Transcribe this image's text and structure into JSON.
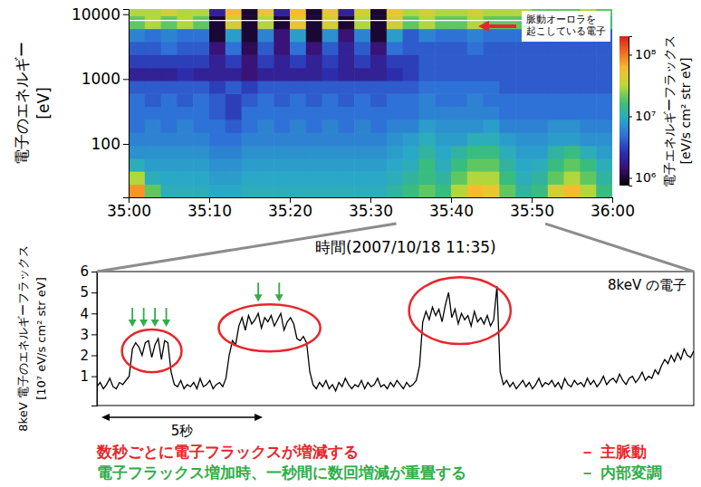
{
  "chart_data": [
    {
      "type": "heatmap",
      "xlabel": "時間(2007/10/18 11:35)",
      "ylabel": [
        "電子のエネルギー",
        "[eV]"
      ],
      "log": "y",
      "xlim": [
        0,
        60
      ],
      "xticks": [
        {
          "value": 0,
          "label": "35:00"
        },
        {
          "value": 10,
          "label": "35:10"
        },
        {
          "value": 20,
          "label": "35:20"
        },
        {
          "value": 30,
          "label": "35:30"
        },
        {
          "value": 40,
          "label": "35:40"
        },
        {
          "value": 50,
          "label": "35:50"
        },
        {
          "value": 60,
          "label": "36:00"
        }
      ],
      "ylim": [
        15,
        12000
      ],
      "yticks": [
        100,
        1000,
        10000
      ],
      "x_edges": [
        0,
        2,
        4,
        6,
        8,
        10,
        12,
        14,
        16,
        18,
        20,
        22,
        24,
        26,
        28,
        30,
        32,
        34,
        36,
        38,
        40,
        42,
        44,
        46,
        48,
        50,
        52,
        54,
        56,
        58,
        60
      ],
      "y_edges": [
        15,
        24,
        38,
        60,
        95,
        150,
        240,
        380,
        600,
        950,
        1500,
        2400,
        3800,
        6000,
        9500,
        12000
      ],
      "cells": [
        [
          80000000.0,
          20000000.0,
          10000000.0,
          10000000.0,
          10000000.0,
          9000000.0,
          9000000.0,
          10000000.0,
          10000000.0,
          10000000.0,
          10000000.0,
          10000000.0,
          10000000.0,
          10000000.0,
          10000000.0,
          10000000.0,
          12000000.0,
          15000000.0,
          20000000.0,
          15000000.0,
          30000000.0,
          60000000.0,
          50000000.0,
          20000000.0,
          12000000.0,
          15000000.0,
          40000000.0,
          60000000.0,
          30000000.0,
          15000000.0
        ],
        [
          30000000.0,
          10000000.0,
          9000000.0,
          9000000.0,
          9000000.0,
          8000000.0,
          8000000.0,
          9000000.0,
          9000000.0,
          9000000.0,
          9000000.0,
          9000000.0,
          9000000.0,
          9000000.0,
          9000000.0,
          9000000.0,
          10000000.0,
          12000000.0,
          15000000.0,
          12000000.0,
          20000000.0,
          30000000.0,
          30000000.0,
          15000000.0,
          10000000.0,
          12000000.0,
          20000000.0,
          30000000.0,
          20000000.0,
          12000000.0
        ],
        [
          10000000.0,
          8000000.0,
          8000000.0,
          8000000.0,
          8000000.0,
          7000000.0,
          7000000.0,
          8000000.0,
          8000000.0,
          8000000.0,
          8000000.0,
          8000000.0,
          8000000.0,
          8000000.0,
          8000000.0,
          8000000.0,
          9000000.0,
          10000000.0,
          15000000.0,
          10000000.0,
          15000000.0,
          20000000.0,
          20000000.0,
          12000000.0,
          9000000.0,
          10000000.0,
          15000000.0,
          20000000.0,
          15000000.0,
          10000000.0
        ],
        [
          7000000.0,
          7000000.0,
          7000000.0,
          7000000.0,
          7000000.0,
          6000000.0,
          6000000.0,
          7000000.0,
          7000000.0,
          7000000.0,
          7000000.0,
          7000000.0,
          7000000.0,
          7000000.0,
          7000000.0,
          7000000.0,
          8000000.0,
          9000000.0,
          12000000.0,
          9000000.0,
          12000000.0,
          15000000.0,
          15000000.0,
          10000000.0,
          8000000.0,
          8000000.0,
          12000000.0,
          15000000.0,
          10000000.0,
          8000000.0
        ],
        [
          6000000.0,
          6000000.0,
          6000000.0,
          6000000.0,
          6000000.0,
          5000000.0,
          5000000.0,
          6000000.0,
          6000000.0,
          6000000.0,
          6000000.0,
          6000000.0,
          6000000.0,
          6000000.0,
          6000000.0,
          6000000.0,
          7000000.0,
          8000000.0,
          10000000.0,
          8000000.0,
          8000000.0,
          10000000.0,
          10000000.0,
          8000000.0,
          7000000.0,
          7000000.0,
          8000000.0,
          8000000.0,
          7000000.0,
          7000000.0
        ],
        [
          5000000.0,
          6000000.0,
          5000000.0,
          6000000.0,
          5000000.0,
          5000000.0,
          4000000.0,
          5000000.0,
          6000000.0,
          5000000.0,
          6000000.0,
          5000000.0,
          6000000.0,
          5000000.0,
          6000000.0,
          5000000.0,
          6000000.0,
          6000000.0,
          8000000.0,
          7000000.0,
          7000000.0,
          7000000.0,
          8000000.0,
          6000000.0,
          6000000.0,
          6000000.0,
          7000000.0,
          7000000.0,
          6000000.0,
          6000000.0
        ],
        [
          5000000.0,
          5000000.0,
          5000000.0,
          5000000.0,
          5000000.0,
          4000000.0,
          3000000.0,
          5000000.0,
          5000000.0,
          5000000.0,
          5000000.0,
          5000000.0,
          5000000.0,
          5000000.0,
          5000000.0,
          5000000.0,
          5000000.0,
          5000000.0,
          6000000.0,
          6000000.0,
          6000000.0,
          6000000.0,
          6000000.0,
          5000000.0,
          5000000.0,
          5000000.0,
          5000000.0,
          5000000.0,
          5000000.0,
          5000000.0
        ],
        [
          5000000.0,
          4000000.0,
          5000000.0,
          4000000.0,
          5000000.0,
          4000000.0,
          3000000.0,
          4000000.0,
          5000000.0,
          4000000.0,
          5000000.0,
          4000000.0,
          5000000.0,
          4000000.0,
          5000000.0,
          4000000.0,
          5000000.0,
          5000000.0,
          6000000.0,
          5000000.0,
          5000000.0,
          6000000.0,
          5000000.0,
          5000000.0,
          5000000.0,
          5000000.0,
          5000000.0,
          5000000.0,
          5000000.0,
          5000000.0
        ],
        [
          4000000.0,
          4000000.0,
          4000000.0,
          4000000.0,
          4000000.0,
          3000000.0,
          4000000.0,
          3000000.0,
          4000000.0,
          4000000.0,
          4000000.0,
          4000000.0,
          4000000.0,
          4000000.0,
          4000000.0,
          4000000.0,
          4000000.0,
          4000000.0,
          5000000.0,
          5000000.0,
          5000000.0,
          5000000.0,
          5000000.0,
          4000000.0,
          4000000.0,
          4000000.0,
          4000000.0,
          4000000.0,
          4000000.0,
          4000000.0
        ],
        [
          2000000.0,
          2000000.0,
          2000000.0,
          2500000.0,
          2000000.0,
          2000000.0,
          2000000.0,
          1500000.0,
          2000000.0,
          2000000.0,
          2000000.0,
          2000000.0,
          2500000.0,
          2000000.0,
          2000000.0,
          2000000.0,
          2500000.0,
          3000000.0,
          4000000.0,
          4000000.0,
          4000000.0,
          4000000.0,
          4000000.0,
          4000000.0,
          4000000.0,
          4000000.0,
          4000000.0,
          4000000.0,
          4000000.0,
          4000000.0
        ],
        [
          3000000.0,
          3000000.0,
          3000000.0,
          3000000.0,
          3000000.0,
          2000000.0,
          3000000.0,
          1500000.0,
          3000000.0,
          2000000.0,
          3000000.0,
          2000000.0,
          3000000.0,
          2000000.0,
          3000000.0,
          2000000.0,
          3000000.0,
          3000000.0,
          4000000.0,
          4000000.0,
          4000000.0,
          4000000.0,
          4000000.0,
          4000000.0,
          4000000.0,
          4000000.0,
          4000000.0,
          4000000.0,
          4000000.0,
          4000000.0
        ],
        [
          4000000.0,
          4000000.0,
          5000000.0,
          4000000.0,
          4000000.0,
          1500000.0,
          5000000.0,
          1200000.0,
          4000000.0,
          1500000.0,
          5000000.0,
          1500000.0,
          4000000.0,
          2000000.0,
          4000000.0,
          1500000.0,
          5000000.0,
          4000000.0,
          4000000.0,
          4000000.0,
          4000000.0,
          5000000.0,
          4000000.0,
          4000000.0,
          4000000.0,
          4000000.0,
          4000000.0,
          4000000.0,
          4000000.0,
          4000000.0
        ],
        [
          6000000.0,
          5000000.0,
          6000000.0,
          5000000.0,
          5000000.0,
          1000000.0,
          8000000.0,
          1000000.0,
          6000000.0,
          1500000.0,
          8000000.0,
          1000000.0,
          7000000.0,
          1500000.0,
          6000000.0,
          1000000.0,
          8000000.0,
          4000000.0,
          6000000.0,
          5000000.0,
          5000000.0,
          6000000.0,
          5000000.0,
          5000000.0,
          5000000.0,
          5000000.0,
          4000000.0,
          5000000.0,
          5000000.0,
          4000000.0
        ],
        [
          20000000.0,
          30000000.0,
          20000000.0,
          30000000.0,
          20000000.0,
          1000000.0,
          40000000.0,
          1000000.0,
          30000000.0,
          1000000.0,
          50000000.0,
          1000000.0,
          40000000.0,
          1000000.0,
          30000000.0,
          1000000.0,
          40000000.0,
          20000000.0,
          30000000.0,
          20000000.0,
          20000000.0,
          30000000.0,
          20000000.0,
          20000000.0,
          20000000.0,
          15000000.0,
          20000000.0,
          15000000.0,
          20000000.0,
          15000000.0
        ],
        [
          30000000.0,
          30000000.0,
          40000000.0,
          30000000.0,
          30000000.0,
          2000000.0,
          60000000.0,
          1000000.0,
          50000000.0,
          2000000.0,
          60000000.0,
          1000000.0,
          50000000.0,
          2000000.0,
          40000000.0,
          1000000.0,
          50000000.0,
          30000000.0,
          40000000.0,
          30000000.0,
          30000000.0,
          40000000.0,
          30000000.0,
          30000000.0,
          30000000.0,
          20000000.0,
          20000000.0,
          20000000.0,
          30000000.0,
          20000000.0
        ]
      ],
      "colorbar": {
        "label": [
          "電子エネルギーフラックス",
          "[eV/s cm² str eV]"
        ],
        "log": true,
        "range": [
          750000.0,
          200000000.0
        ],
        "ticks": [
          {
            "value": 1000000,
            "label": "10⁶"
          },
          {
            "value": 10000000,
            "label": "10⁷"
          },
          {
            "value": 100000000,
            "label": "10⁸"
          }
        ]
      },
      "highlight_energy": 8000,
      "annotation": [
        "脈動オーロラを",
        "起こしている電子"
      ],
      "zoom_range": [
        33.2,
        51.7
      ]
    },
    {
      "type": "line",
      "ylabel": [
        "8keV 電子のエネルギーフラックス",
        "[10⁷ eV/s cm² str eV]"
      ],
      "tick_labels": "y",
      "legend": "upper right",
      "xlim": [
        0,
        18.5
      ],
      "ylim": [
        -0.4,
        6
      ],
      "yticks": [
        1,
        2,
        3,
        4,
        5,
        6
      ],
      "x": [
        0,
        0.1,
        0.2,
        0.3,
        0.4,
        0.5,
        0.6,
        0.7,
        0.8,
        0.9,
        1,
        1.1,
        1.2,
        1.3,
        1.4,
        1.5,
        1.6,
        1.7,
        1.8,
        1.9,
        2,
        2.1,
        2.2,
        2.3,
        2.4,
        2.5,
        2.6,
        2.7,
        2.8,
        2.9,
        3,
        3.1,
        3.2,
        3.3,
        3.4,
        3.5,
        3.6,
        3.7,
        3.8,
        3.9,
        4,
        4.1,
        4.2,
        4.3,
        4.4,
        4.5,
        4.6,
        4.7,
        4.8,
        4.9,
        5,
        5.1,
        5.2,
        5.3,
        5.4,
        5.5,
        5.6,
        5.7,
        5.8,
        5.9,
        6,
        6.1,
        6.2,
        6.3,
        6.4,
        6.5,
        6.6,
        6.7,
        6.8,
        6.9,
        7,
        7.1,
        7.2,
        7.3,
        7.4,
        7.5,
        7.6,
        7.7,
        7.8,
        7.9,
        8,
        8.1,
        8.2,
        8.3,
        8.4,
        8.5,
        8.6,
        8.7,
        8.8,
        8.9,
        9,
        9.1,
        9.2,
        9.3,
        9.4,
        9.5,
        9.6,
        9.7,
        9.8,
        9.9,
        10,
        10.1,
        10.2,
        10.3,
        10.4,
        10.5,
        10.6,
        10.7,
        10.8,
        10.9,
        11,
        11.1,
        11.2,
        11.3,
        11.4,
        11.5,
        11.6,
        11.7,
        11.8,
        11.9,
        12,
        12.1,
        12.2,
        12.3,
        12.4,
        12.5,
        12.6,
        12.7,
        12.8,
        12.9,
        13,
        13.1,
        13.2,
        13.3,
        13.4,
        13.5,
        13.6,
        13.7,
        13.8,
        13.9,
        14,
        14.1,
        14.2,
        14.3,
        14.4,
        14.5,
        14.6,
        14.7,
        14.8,
        14.9,
        15,
        15.1,
        15.2,
        15.3,
        15.4,
        15.5,
        15.6,
        15.7,
        15.8,
        15.9,
        16,
        16.1,
        16.2,
        16.3,
        16.4,
        16.5,
        16.6,
        16.7,
        16.8,
        16.9,
        17,
        17.1,
        17.2,
        17.3,
        17.4,
        17.5,
        17.6,
        17.7,
        17.8,
        17.9,
        18,
        18.1,
        18.2,
        18.3,
        18.4,
        18.5
      ],
      "series": [
        {
          "name": "8keV の電子",
          "color": "#000000",
          "values": [
            0.5,
            0.7,
            0.4,
            0.6,
            0.9,
            0.5,
            0.4,
            0.7,
            0.6,
            0.8,
            1.0,
            2.3,
            2.6,
            2.4,
            2.0,
            2.6,
            2.7,
            1.9,
            2.5,
            2.8,
            1.8,
            2.7,
            2.6,
            1.2,
            0.6,
            0.5,
            0.8,
            0.4,
            0.6,
            0.5,
            0.7,
            0.4,
            0.9,
            0.5,
            0.6,
            0.8,
            0.4,
            0.6,
            0.7,
            0.5,
            0.9,
            2.0,
            2.7,
            2.5,
            3.4,
            3.8,
            3.2,
            3.9,
            3.5,
            3.7,
            4.0,
            3.3,
            3.8,
            3.6,
            3.9,
            3.4,
            3.7,
            4.0,
            3.2,
            3.6,
            3.8,
            3.5,
            2.8,
            2.7,
            2.9,
            2.6,
            1.2,
            0.6,
            0.4,
            0.7,
            0.5,
            0.8,
            0.4,
            0.6,
            0.3,
            0.7,
            0.5,
            0.9,
            0.6,
            0.4,
            0.6,
            0.5,
            0.8,
            0.4,
            0.7,
            0.5,
            0.6,
            0.9,
            0.5,
            0.6,
            0.4,
            0.7,
            0.5,
            0.8,
            0.6,
            0.4,
            0.7,
            0.5,
            0.6,
            0.8,
            1.5,
            3.6,
            4.1,
            3.7,
            4.3,
            3.9,
            4.2,
            3.6,
            4.4,
            5.0,
            3.8,
            4.2,
            3.5,
            4.0,
            3.7,
            3.9,
            3.4,
            4.1,
            3.6,
            3.8,
            3.5,
            3.9,
            3.4,
            3.7,
            5.3,
            1.2,
            0.6,
            0.8,
            0.5,
            0.7,
            0.4,
            0.6,
            0.8,
            0.5,
            0.7,
            0.4,
            0.6,
            0.9,
            0.5,
            0.7,
            0.6,
            0.8,
            0.5,
            0.7,
            0.4,
            0.9,
            0.6,
            0.5,
            0.8,
            0.6,
            0.7,
            0.5,
            0.9,
            0.6,
            0.8,
            0.5,
            0.7,
            1.0,
            0.6,
            0.8,
            0.9,
            0.7,
            1.1,
            0.8,
            0.6,
            0.9,
            1.0,
            0.7,
            0.9,
            1.2,
            0.8,
            1.0,
            0.9,
            1.3,
            1.1,
            1.5,
            1.8,
            1.6,
            2.0,
            1.7,
            2.1,
            1.8,
            2.3,
            2.0,
            1.9,
            2.2
          ]
        }
      ],
      "main_pulse_intervals": [
        [
          1.0,
          2.4
        ],
        [
          4.0,
          6.7
        ],
        [
          9.9,
          12.6
        ]
      ],
      "internal_modulation_times": [
        1.1,
        1.45,
        1.8,
        2.15,
        5.0,
        5.65
      ],
      "scale_bar": {
        "value": 5,
        "label": "5秒"
      },
      "annotations": [
        {
          "text": "数秒ごとに電子フラックスが増減する",
          "term": "－ 主脈動",
          "color": "#e8262b"
        },
        {
          "text": "電子フラックス増加時、一秒間に数回増減が重畳する",
          "term": "－ 内部変調",
          "color": "#2fae48"
        }
      ]
    }
  ]
}
